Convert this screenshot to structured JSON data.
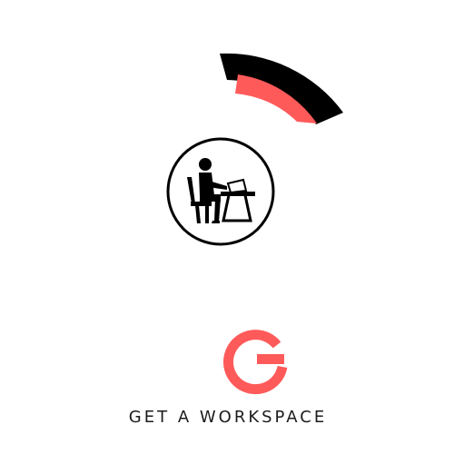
{
  "brand": {
    "name": "GET A WORKSPACE",
    "accent_color": "#ff5a5a",
    "dark_color": "#000000"
  },
  "graphics": {
    "arc": "arc-decoration",
    "icon": "person-at-desk-icon",
    "letter_mark": "letter-g-icon"
  }
}
